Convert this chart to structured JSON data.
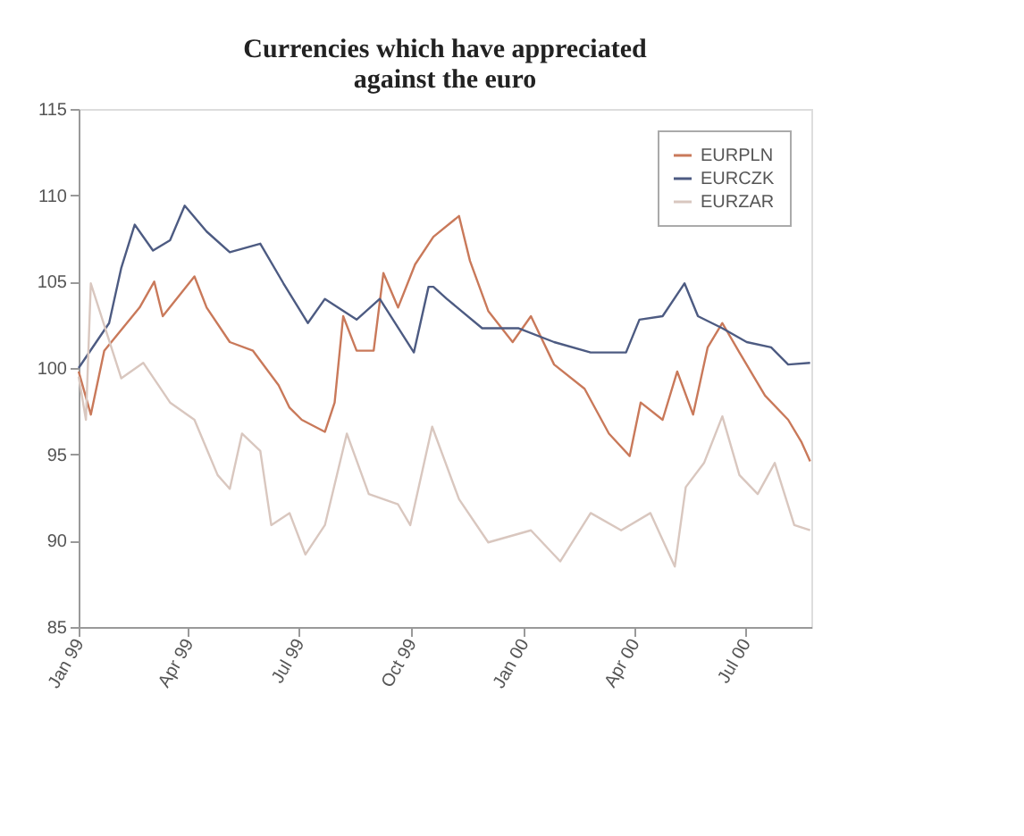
{
  "chart_data": {
    "type": "line",
    "title": [
      "Currencies which have appreciated",
      "against the euro"
    ],
    "xlim": [
      "1999-01-01",
      "2000-08-24"
    ],
    "xticks": [
      {
        "value": "1999-01-01",
        "label": "Jan 99"
      },
      {
        "value": "1999-04-01",
        "label": "Apr 99"
      },
      {
        "value": "1999-07-01",
        "label": "Jul 99"
      },
      {
        "value": "1999-10-01",
        "label": "Oct 99"
      },
      {
        "value": "2000-01-01",
        "label": "Jan 00"
      },
      {
        "value": "2000-04-01",
        "label": "Apr 00"
      },
      {
        "value": "2000-07-01",
        "label": "Jul 00"
      }
    ],
    "ylim": [
      85,
      115
    ],
    "yticks": [
      85,
      90,
      95,
      100,
      105,
      110,
      115
    ],
    "grid": false,
    "legend": "top right",
    "series": [
      {
        "name": "EURPLN",
        "color": "#c9795a",
        "x": [
          "1999-01-01",
          "1999-01-11",
          "1999-01-22",
          "1999-02-20",
          "1999-03-04",
          "1999-03-11",
          "1999-04-06",
          "1999-04-16",
          "1999-05-05",
          "1999-05-24",
          "1999-06-14",
          "1999-06-23",
          "1999-07-03",
          "1999-07-22",
          "1999-07-30",
          "1999-08-06",
          "1999-08-17",
          "1999-08-31",
          "1999-09-08",
          "1999-09-20",
          "1999-10-04",
          "1999-10-19",
          "1999-11-09",
          "1999-11-18",
          "1999-12-03",
          "1999-12-23",
          "2000-01-07",
          "2000-01-26",
          "2000-02-20",
          "2000-03-11",
          "2000-03-28",
          "2000-04-06",
          "2000-04-24",
          "2000-05-06",
          "2000-05-19",
          "2000-05-31",
          "2000-06-12",
          "2000-06-26",
          "2000-07-17",
          "2000-08-05",
          "2000-08-16",
          "2000-08-23"
        ],
        "values": [
          99.8,
          97.3,
          101,
          103.5,
          105,
          103,
          105.3,
          103.5,
          101.5,
          101,
          99,
          97.7,
          97,
          96.3,
          98,
          103,
          101,
          101,
          105.5,
          103.5,
          106,
          107.6,
          108.8,
          106.2,
          103.3,
          101.5,
          103,
          100.2,
          98.8,
          96.2,
          94.9,
          98,
          97,
          99.8,
          97.3,
          101.2,
          102.6,
          100.9,
          98.4,
          97,
          95.7,
          94.6
        ]
      },
      {
        "name": "EURCZK",
        "color": "#4d5b82",
        "x": [
          "1999-01-01",
          "1999-01-26",
          "1999-02-05",
          "1999-02-16",
          "1999-03-03",
          "1999-03-17",
          "1999-03-29",
          "1999-04-16",
          "1999-05-05",
          "1999-05-30",
          "1999-06-18",
          "1999-07-08",
          "1999-07-22",
          "1999-08-17",
          "1999-09-05",
          "1999-10-03",
          "1999-10-15",
          "1999-10-19",
          "1999-10-30",
          "1999-11-28",
          "1999-12-28",
          "2000-01-26",
          "2000-02-25",
          "2000-03-25",
          "2000-04-05",
          "2000-04-24",
          "2000-05-12",
          "2000-05-23",
          "2000-06-12",
          "2000-07-02",
          "2000-07-22",
          "2000-08-05",
          "2000-08-23"
        ],
        "values": [
          100,
          102.6,
          105.8,
          108.3,
          106.8,
          107.4,
          109.4,
          107.9,
          106.7,
          107.2,
          104.9,
          102.6,
          104,
          102.8,
          104,
          100.9,
          104.7,
          104.7,
          104,
          102.3,
          102.3,
          101.5,
          100.9,
          100.9,
          102.8,
          103,
          104.9,
          103,
          102.3,
          101.5,
          101.2,
          100.2,
          100.3
        ]
      },
      {
        "name": "EURZAR",
        "color": "#d9c7bf",
        "x": [
          "1999-01-01",
          "1999-01-07",
          "1999-01-11",
          "1999-02-05",
          "1999-02-23",
          "1999-03-17",
          "1999-04-06",
          "1999-04-25",
          "1999-05-05",
          "1999-05-15",
          "1999-05-30",
          "1999-06-08",
          "1999-06-23",
          "1999-07-06",
          "1999-07-22",
          "1999-08-09",
          "1999-08-27",
          "1999-09-20",
          "1999-09-30",
          "1999-10-18",
          "1999-11-09",
          "1999-12-03",
          "2000-01-07",
          "2000-01-31",
          "2000-02-25",
          "2000-03-21",
          "2000-04-14",
          "2000-05-04",
          "2000-05-13",
          "2000-05-28",
          "2000-06-12",
          "2000-06-26",
          "2000-07-11",
          "2000-07-25",
          "2000-08-10",
          "2000-08-23"
        ],
        "values": [
          99.5,
          97,
          104.9,
          99.4,
          100.3,
          98,
          97,
          93.8,
          93,
          96.2,
          95.2,
          90.9,
          91.6,
          89.2,
          90.9,
          96.2,
          92.7,
          92.1,
          90.9,
          96.6,
          92.4,
          89.9,
          90.6,
          88.8,
          91.6,
          90.6,
          91.6,
          88.5,
          93.1,
          94.5,
          97.2,
          93.8,
          92.7,
          94.5,
          90.9,
          90.6
        ]
      }
    ]
  }
}
